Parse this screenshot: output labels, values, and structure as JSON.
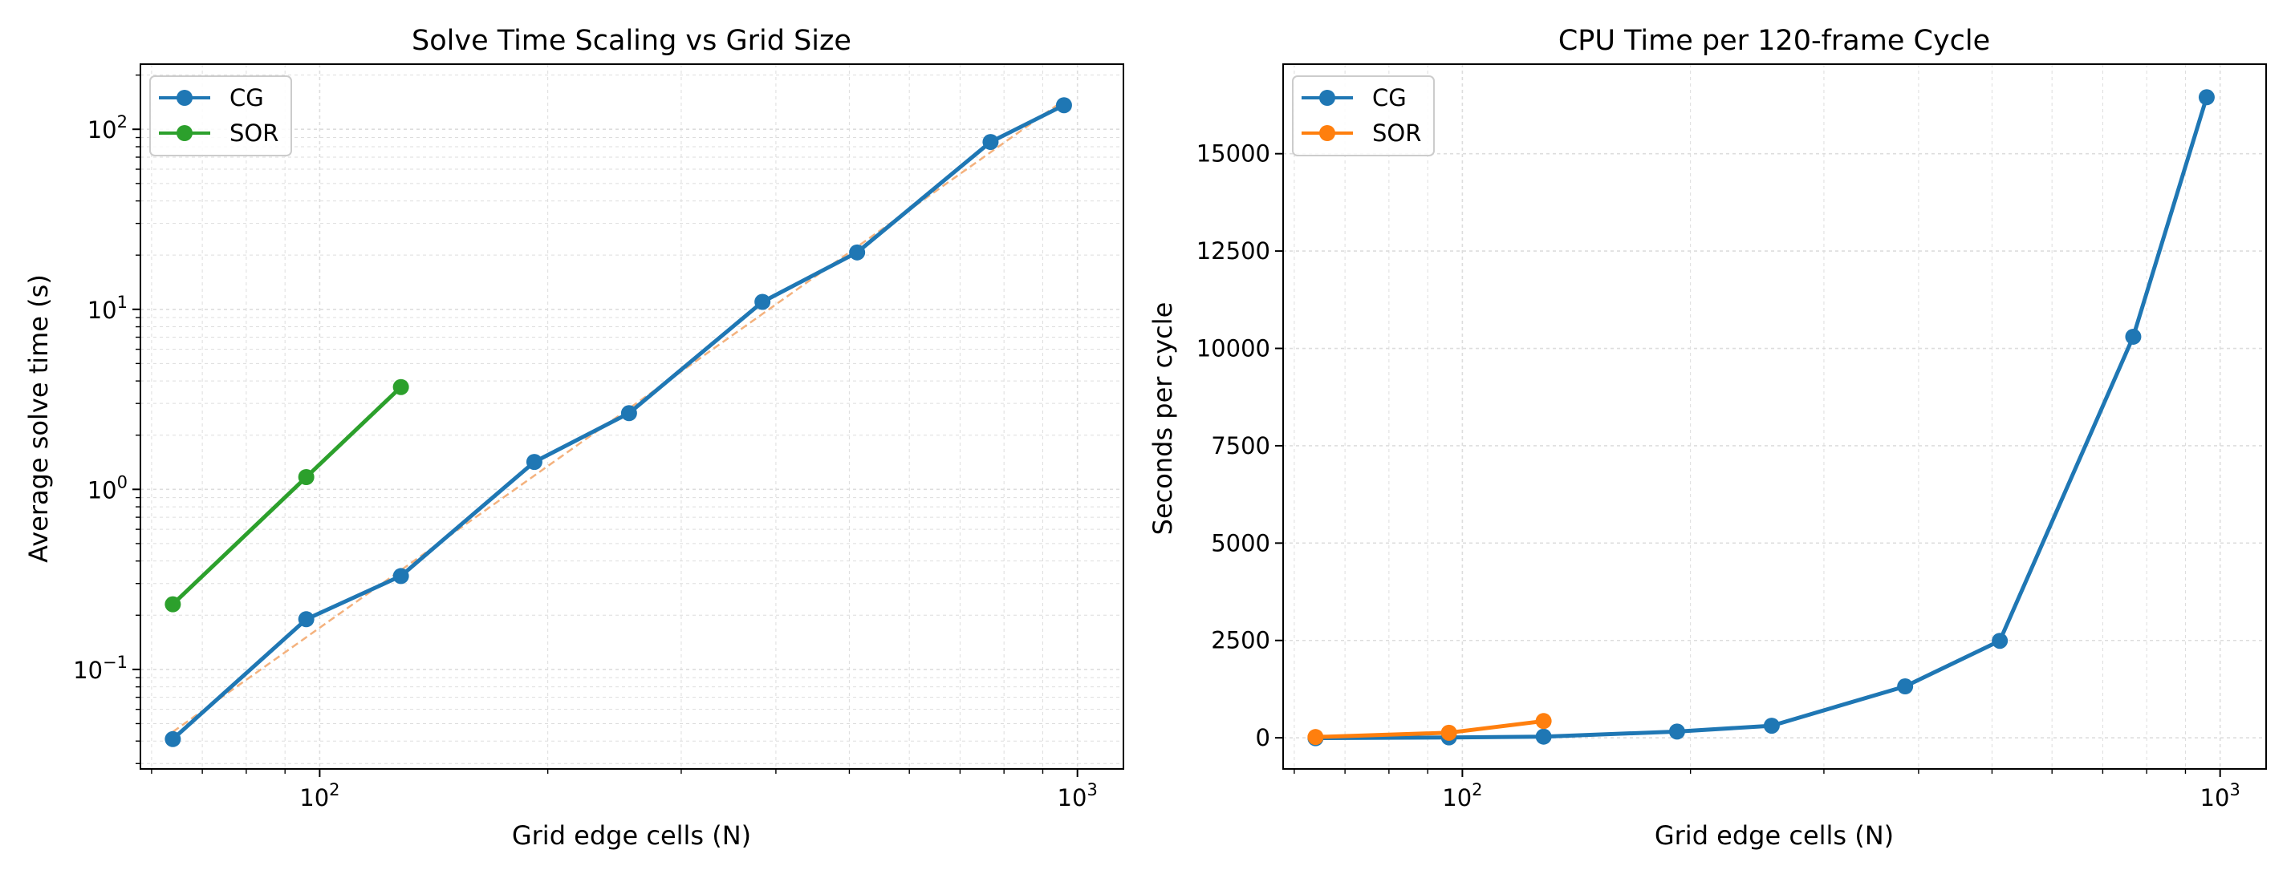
{
  "colors": {
    "cg": "#1f77b4",
    "sor_left": "#2ca02c",
    "sor_right": "#ff7f0e",
    "fit": "#f4b27e",
    "grid": "#dddddd"
  },
  "chart_data": [
    {
      "type": "line",
      "title": "Solve Time Scaling vs Grid Size",
      "xlabel": "Grid edge cells (N)",
      "ylabel": "Average solve time (s)",
      "xscale": "log",
      "yscale": "log",
      "xlim": [
        58,
        1150
      ],
      "ylim": [
        0.028,
        230
      ],
      "x_ticks": [
        {
          "value": 100,
          "base": "10",
          "exp": "2"
        },
        {
          "value": 1000,
          "base": "10",
          "exp": "3"
        }
      ],
      "y_ticks": [
        {
          "value": 0.1,
          "base": "10",
          "exp": "−1"
        },
        {
          "value": 1,
          "base": "10",
          "exp": "0"
        },
        {
          "value": 10,
          "base": "10",
          "exp": "1"
        },
        {
          "value": 100,
          "base": "10",
          "exp": "2"
        }
      ],
      "grid": true,
      "legend": {
        "position": "top-left",
        "entries": [
          "CG",
          "SOR"
        ]
      },
      "series": [
        {
          "name": "CG",
          "x": [
            64,
            96,
            128,
            192,
            256,
            384,
            512,
            768,
            960
          ],
          "y": [
            0.041,
            0.19,
            0.33,
            1.42,
            2.65,
            11.0,
            20.7,
            85.0,
            136.0
          ]
        },
        {
          "name": "SOR",
          "x": [
            64,
            96,
            128
          ],
          "y": [
            0.23,
            1.17,
            3.7
          ]
        }
      ],
      "fit_lines": [
        {
          "x": [
            64,
            960
          ],
          "y": [
            0.045,
            145.0
          ]
        },
        {
          "x": [
            64,
            128
          ],
          "y": [
            0.23,
            3.7
          ]
        }
      ]
    },
    {
      "type": "line",
      "title": "CPU Time per 120-frame Cycle",
      "xlabel": "Grid edge cells (N)",
      "ylabel": "Seconds per cycle",
      "xscale": "log",
      "yscale": "linear",
      "xlim": [
        58,
        1150
      ],
      "ylim": [
        -800,
        17300
      ],
      "x_ticks": [
        {
          "value": 100,
          "base": "10",
          "exp": "2"
        },
        {
          "value": 1000,
          "base": "10",
          "exp": "3"
        }
      ],
      "y_ticks": [
        {
          "value": 0,
          "label": "0"
        },
        {
          "value": 2500,
          "label": "2500"
        },
        {
          "value": 5000,
          "label": "5000"
        },
        {
          "value": 7500,
          "label": "7500"
        },
        {
          "value": 10000,
          "label": "10000"
        },
        {
          "value": 12500,
          "label": "12500"
        },
        {
          "value": 15000,
          "label": "15000"
        }
      ],
      "grid": true,
      "legend": {
        "position": "top-left",
        "entries": [
          "CG",
          "SOR"
        ]
      },
      "series": [
        {
          "name": "CG",
          "x": [
            64,
            96,
            128,
            192,
            256,
            384,
            512,
            768,
            960
          ],
          "y": [
            -10,
            10,
            30,
            160,
            310,
            1320,
            2490,
            10300,
            16450
          ]
        },
        {
          "name": "SOR",
          "x": [
            64,
            96,
            128
          ],
          "y": [
            20,
            130,
            430
          ]
        }
      ]
    }
  ]
}
